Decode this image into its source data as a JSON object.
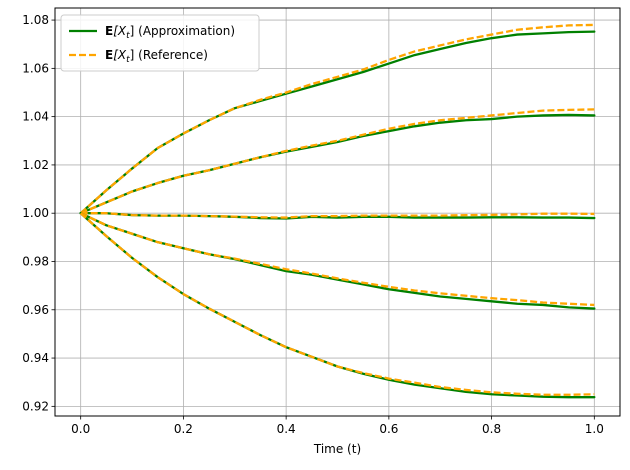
{
  "chart_data": {
    "type": "line",
    "xlabel": "Time (t)",
    "ylabel": "",
    "xlim": [
      -0.05,
      1.05
    ],
    "ylim": [
      0.916,
      1.085
    ],
    "x_ticks": [
      0.0,
      0.2,
      0.4,
      0.6,
      0.8,
      1.0
    ],
    "x_tick_labels": [
      "0.0",
      "0.2",
      "0.4",
      "0.6",
      "0.8",
      "1.0"
    ],
    "y_ticks": [
      0.92,
      0.94,
      0.96,
      0.98,
      1.0,
      1.02,
      1.04,
      1.06,
      1.08
    ],
    "y_tick_labels": [
      "0.92",
      "0.94",
      "0.96",
      "0.98",
      "1.00",
      "1.02",
      "1.04",
      "1.06",
      "1.08"
    ],
    "grid": true,
    "legend_position": "top-left",
    "legend": [
      {
        "bold": "E",
        "italic": "[X",
        "sub": "t",
        "rest": "] (Approximation)",
        "style": "solid",
        "color": "#008000"
      },
      {
        "bold": "E",
        "italic": "[X",
        "sub": "t",
        "rest": "] (Reference)",
        "style": "dashed",
        "color": "#FFA500"
      }
    ],
    "x": [
      0.0,
      0.05,
      0.1,
      0.15,
      0.2,
      0.25,
      0.3,
      0.35,
      0.4,
      0.45,
      0.5,
      0.55,
      0.6,
      0.65,
      0.7,
      0.75,
      0.8,
      0.85,
      0.9,
      0.95,
      1.0
    ],
    "series": [
      {
        "group": "approximation",
        "color": "#008000",
        "values": [
          1.0,
          1.0095,
          1.0185,
          1.027,
          1.033,
          1.0385,
          1.0435,
          1.0465,
          1.0495,
          1.0525,
          1.0555,
          1.0585,
          1.062,
          1.0655,
          1.068,
          1.0705,
          1.0725,
          1.074,
          1.0745,
          1.075,
          1.0752
        ]
      },
      {
        "group": "reference",
        "color": "#FFA500",
        "values": [
          1.0,
          1.0095,
          1.0185,
          1.027,
          1.033,
          1.0385,
          1.0435,
          1.047,
          1.05,
          1.0535,
          1.0565,
          1.0595,
          1.0635,
          1.067,
          1.0695,
          1.072,
          1.074,
          1.076,
          1.077,
          1.0778,
          1.078
        ]
      },
      {
        "group": "approximation",
        "color": "#008000",
        "values": [
          1.0,
          1.0045,
          1.009,
          1.0125,
          1.0155,
          1.0178,
          1.0205,
          1.0232,
          1.0255,
          1.0275,
          1.0295,
          1.032,
          1.034,
          1.036,
          1.0375,
          1.0385,
          1.039,
          1.04,
          1.0405,
          1.0407,
          1.0405
        ]
      },
      {
        "group": "reference",
        "color": "#FFA500",
        "values": [
          1.0,
          1.0045,
          1.009,
          1.0125,
          1.0155,
          1.0178,
          1.0205,
          1.0232,
          1.0258,
          1.028,
          1.03,
          1.0325,
          1.035,
          1.037,
          1.0385,
          1.0395,
          1.0405,
          1.0415,
          1.0425,
          1.0428,
          1.043
        ]
      },
      {
        "group": "approximation",
        "color": "#008000",
        "values": [
          1.0,
          1.0,
          0.9992,
          0.999,
          0.999,
          0.9988,
          0.9985,
          0.998,
          0.9978,
          0.9985,
          0.9982,
          0.9985,
          0.9985,
          0.9982,
          0.9982,
          0.9982,
          0.9983,
          0.9983,
          0.9982,
          0.9982,
          0.998
        ]
      },
      {
        "group": "reference",
        "color": "#FFA500",
        "values": [
          1.0,
          1.0,
          0.9992,
          0.999,
          0.999,
          0.9988,
          0.9986,
          0.9983,
          0.9982,
          0.9988,
          0.9988,
          0.999,
          0.999,
          0.999,
          0.999,
          0.9992,
          0.9993,
          0.9995,
          0.9998,
          0.9998,
          0.9997
        ]
      },
      {
        "group": "approximation",
        "color": "#008000",
        "values": [
          1.0,
          0.995,
          0.9915,
          0.988,
          0.9855,
          0.983,
          0.981,
          0.9785,
          0.976,
          0.9745,
          0.9725,
          0.9705,
          0.9685,
          0.967,
          0.9655,
          0.9645,
          0.9635,
          0.9625,
          0.962,
          0.961,
          0.9605
        ]
      },
      {
        "group": "reference",
        "color": "#FFA500",
        "values": [
          1.0,
          0.995,
          0.9915,
          0.988,
          0.9855,
          0.983,
          0.9812,
          0.979,
          0.9768,
          0.975,
          0.973,
          0.9712,
          0.9695,
          0.968,
          0.9668,
          0.9658,
          0.9648,
          0.964,
          0.963,
          0.9625,
          0.962
        ]
      },
      {
        "group": "approximation",
        "color": "#008000",
        "values": [
          1.0,
          0.9905,
          0.9815,
          0.9735,
          0.9665,
          0.9605,
          0.955,
          0.9495,
          0.9445,
          0.9405,
          0.9365,
          0.9335,
          0.931,
          0.929,
          0.9275,
          0.926,
          0.925,
          0.9245,
          0.924,
          0.9238,
          0.9238
        ]
      },
      {
        "group": "reference",
        "color": "#FFA500",
        "values": [
          1.0,
          0.9905,
          0.9815,
          0.9735,
          0.9665,
          0.9605,
          0.955,
          0.9495,
          0.9445,
          0.9405,
          0.9365,
          0.9338,
          0.9315,
          0.9298,
          0.928,
          0.9268,
          0.9258,
          0.9252,
          0.9248,
          0.9248,
          0.925
        ]
      }
    ]
  }
}
